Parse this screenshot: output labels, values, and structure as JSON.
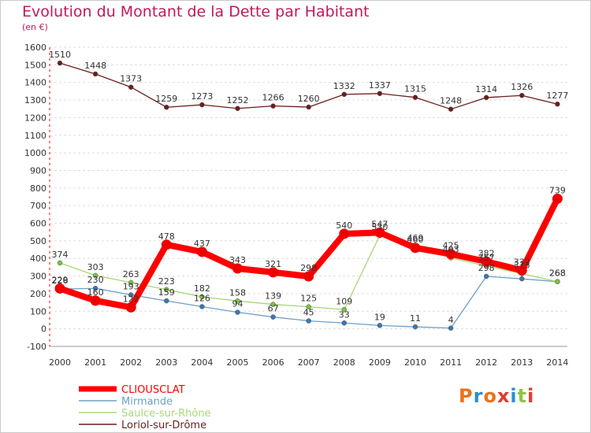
{
  "title": "Evolution du Montant de la Dette par Habitant",
  "unit": "(en €)",
  "logo": "Proxiti",
  "colors": {
    "title": "#c2185b",
    "grid": "#dddddd",
    "logo_letters": [
      "#e8731c",
      "#2a8fd0",
      "#e8731c",
      "#e23c2a",
      "#2a8fd0",
      "#8cc63f",
      "#e23c2a"
    ]
  },
  "chart_data": {
    "type": "line",
    "title": "Evolution du Montant de la Dette par Habitant",
    "ylabel": "(en €)",
    "x": [
      "2000",
      "2001",
      "2002",
      "2003",
      "2004",
      "2005",
      "2006",
      "2007",
      "2008",
      "2009",
      "2010",
      "2011",
      "2012",
      "2013",
      "2014"
    ],
    "ylim": [
      -100,
      1600
    ],
    "yticks": [
      -100,
      0,
      100,
      200,
      300,
      400,
      500,
      600,
      700,
      800,
      900,
      1000,
      1100,
      1200,
      1300,
      1400,
      1500,
      1600
    ],
    "grid": "horizontal dashed",
    "legend_position": "bottom-left",
    "series": [
      {
        "name": "Loriol-sur-Drôme",
        "color": "#6b1e1e",
        "marker": "#6b1e1e",
        "width": 1.3,
        "values": [
          1510,
          1448,
          1373,
          1259,
          1273,
          1252,
          1266,
          1260,
          1332,
          1337,
          1315,
          1248,
          1314,
          1326,
          1277
        ],
        "labels": [
          "1510",
          "1448",
          "1373",
          "1259",
          "1273",
          "1252",
          "1266",
          "1260",
          "1332",
          "1337",
          "1315",
          "1248",
          "1314",
          "1326",
          "1277"
        ]
      },
      {
        "name": "Mirmande",
        "color": "#6e9fc8",
        "marker": "#3a78b0",
        "width": 1.3,
        "values": [
          226,
          230,
          193,
          159,
          126,
          94,
          67,
          45,
          33,
          19,
          11,
          4,
          298,
          284,
          268
        ],
        "labels": [
          "226",
          "230",
          "193",
          "159",
          "126",
          "94",
          "67",
          "45",
          "33",
          "19",
          "11",
          "4",
          "298",
          "",
          "268"
        ]
      },
      {
        "name": "Saulce-sur-Rhône",
        "color": "#a8d878",
        "marker": "#7ac143",
        "width": 1.3,
        "values": [
          374,
          303,
          263,
          223,
          182,
          158,
          139,
          125,
          109,
          530,
          469,
          403,
          357,
          313,
          268
        ],
        "labels": [
          "374",
          "303",
          "263",
          "223",
          "182",
          "158",
          "139",
          "125",
          "109",
          "530",
          "469",
          "403",
          "357",
          "313",
          "268"
        ]
      },
      {
        "name": "CLIOUSCLAT",
        "color": "#ff0000",
        "marker": "#ee0000",
        "width": 8,
        "values": [
          229,
          160,
          122,
          478,
          437,
          343,
          321,
          298,
          540,
          547,
          460,
          425,
          382,
          332,
          739
        ],
        "labels": [
          "229",
          "160",
          "122",
          "478",
          "437",
          "343",
          "321",
          "298",
          "540",
          "547",
          "460",
          "425",
          "382",
          "332",
          "739"
        ]
      }
    ]
  }
}
